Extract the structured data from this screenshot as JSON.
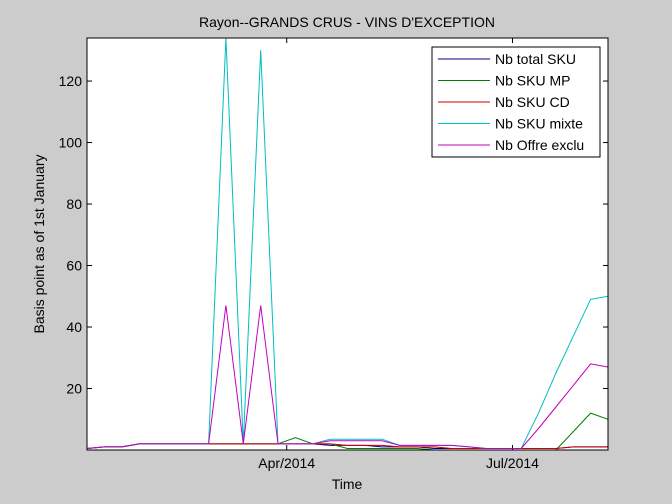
{
  "chart_data": {
    "type": "line",
    "title": "Rayon--GRANDS CRUS - VINS D'EXCEPTION",
    "xlabel": "Time",
    "ylabel": "Basis point as of 1st January",
    "ylim": [
      0,
      134
    ],
    "xlim": [
      0,
      30
    ],
    "y_ticks": [
      20,
      40,
      60,
      80,
      100,
      120
    ],
    "x_ticks": [
      {
        "x": 11.5,
        "label": "Apr/2014"
      },
      {
        "x": 24.5,
        "label": "Jul/2014"
      }
    ],
    "legend": "top-right",
    "grid": false,
    "x": [
      0,
      1,
      2,
      3,
      4,
      5,
      6,
      7,
      8,
      9,
      10,
      11,
      12,
      13,
      14,
      15,
      16,
      17,
      18,
      19,
      20,
      21,
      22,
      23,
      24,
      25,
      26,
      27,
      28,
      29,
      30
    ],
    "series": [
      {
        "name": "Nb total SKU",
        "color": "#00007f",
        "values": [
          0.5,
          1,
          1,
          2,
          2,
          2,
          2,
          2,
          2,
          2,
          2,
          2,
          2,
          2,
          1.5,
          1.5,
          1.5,
          1,
          1,
          1,
          0.5,
          0.5,
          0.5,
          0.5,
          0.5,
          0.5,
          0.5,
          0.5,
          1,
          1,
          1
        ]
      },
      {
        "name": "Nb SKU MP",
        "color": "#007f00",
        "values": [
          0.5,
          1,
          1,
          2,
          2,
          2,
          2,
          2,
          2,
          2,
          2,
          2,
          4,
          2,
          2,
          0.5,
          0.5,
          0.5,
          0.5,
          0.5,
          0,
          0,
          0,
          0,
          0,
          0,
          0,
          0,
          6,
          12,
          10
        ]
      },
      {
        "name": "Nb SKU CD",
        "color": "#cc0000",
        "values": [
          0.5,
          1,
          1,
          2,
          2,
          2,
          2,
          2,
          2,
          2,
          2,
          2,
          2,
          2,
          2,
          1.5,
          1.5,
          1.5,
          1,
          1,
          1,
          0.5,
          0.5,
          0.5,
          0.5,
          0.5,
          0.5,
          0.5,
          1,
          1,
          1
        ]
      },
      {
        "name": "Nb SKU mixte",
        "color": "#00bfbf",
        "values": [
          0.5,
          1,
          1,
          2,
          2,
          2,
          2,
          2,
          134,
          2,
          130,
          2,
          2,
          2,
          3.5,
          3.5,
          3.5,
          3.5,
          1.5,
          1.5,
          1.5,
          1.5,
          1,
          0.5,
          0.5,
          0.5,
          12,
          25,
          37,
          49,
          50
        ]
      },
      {
        "name": "Nb Offre exclu",
        "color": "#bf00bf",
        "values": [
          0.5,
          1,
          1,
          2,
          2,
          2,
          2,
          2,
          47,
          2,
          47,
          2,
          2,
          2,
          3,
          3,
          3,
          3,
          1.5,
          1.5,
          1.5,
          1.5,
          1,
          0.5,
          0.5,
          0.5,
          7,
          14,
          21,
          28,
          27
        ]
      }
    ]
  }
}
